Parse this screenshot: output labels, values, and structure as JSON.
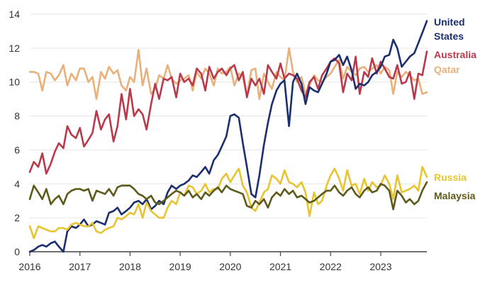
{
  "chart_data": {
    "type": "line",
    "title": "",
    "xlabel": "",
    "ylabel": "",
    "xlim": [
      2016,
      2023.92
    ],
    "ylim": [
      0,
      14
    ],
    "yticks": [
      0,
      2,
      4,
      6,
      8,
      10,
      12,
      14
    ],
    "xticks": [
      "2016",
      "2017",
      "2018",
      "2019",
      "2020",
      "2021",
      "2022",
      "2023"
    ],
    "grid": true,
    "legend": "direct labels at line ends, right side",
    "x": [
      2016.0,
      2016.08,
      2016.17,
      2016.25,
      2016.33,
      2016.42,
      2016.5,
      2016.58,
      2016.67,
      2016.75,
      2016.83,
      2016.92,
      2017.0,
      2017.08,
      2017.17,
      2017.25,
      2017.33,
      2017.42,
      2017.5,
      2017.58,
      2017.67,
      2017.75,
      2017.83,
      2017.92,
      2018.0,
      2018.08,
      2018.17,
      2018.25,
      2018.33,
      2018.42,
      2018.5,
      2018.58,
      2018.67,
      2018.75,
      2018.83,
      2018.92,
      2019.0,
      2019.08,
      2019.17,
      2019.25,
      2019.33,
      2019.42,
      2019.5,
      2019.58,
      2019.67,
      2019.75,
      2019.83,
      2019.92,
      2020.0,
      2020.08,
      2020.17,
      2020.25,
      2020.33,
      2020.42,
      2020.5,
      2020.58,
      2020.67,
      2020.75,
      2020.83,
      2020.92,
      2021.0,
      2021.08,
      2021.17,
      2021.25,
      2021.33,
      2021.42,
      2021.5,
      2021.58,
      2021.67,
      2021.75,
      2021.83,
      2021.92,
      2022.0,
      2022.08,
      2022.17,
      2022.25,
      2022.33,
      2022.42,
      2022.5,
      2022.58,
      2022.67,
      2022.75,
      2022.83,
      2022.92,
      2023.0,
      2023.08,
      2023.17,
      2023.25,
      2023.33,
      2023.42,
      2023.5,
      2023.58,
      2023.67,
      2023.75,
      2023.83,
      2023.92
    ],
    "series": [
      {
        "name": "Qatar",
        "color": "#E8B07A",
        "values": [
          10.6,
          10.6,
          10.5,
          9.5,
          10.6,
          10.5,
          10.1,
          10.4,
          11.0,
          9.8,
          10.5,
          10.1,
          10.8,
          10.8,
          10.0,
          10.3,
          9.0,
          10.6,
          10.2,
          10.9,
          10.5,
          10.7,
          9.8,
          9.5,
          10.3,
          10.0,
          11.9,
          9.8,
          10.8,
          9.3,
          9.6,
          10.4,
          10.2,
          11.0,
          10.2,
          9.9,
          10.1,
          10.2,
          10.4,
          9.5,
          10.6,
          10.2,
          10.8,
          10.5,
          9.8,
          10.8,
          10.5,
          10.6,
          10.9,
          9.8,
          10.5,
          10.3,
          9.2,
          10.7,
          10.8,
          9.0,
          10.5,
          10.0,
          9.6,
          10.6,
          10.3,
          10.1,
          12.0,
          10.6,
          10.0,
          10.3,
          9.3,
          9.8,
          10.4,
          10.1,
          10.0,
          10.3,
          10.5,
          10.9,
          11.3,
          10.2,
          10.9,
          10.6,
          10.4,
          10.8,
          10.9,
          10.6,
          10.8,
          11.0,
          10.5,
          10.9,
          10.7,
          9.3,
          10.6,
          10.3,
          10.6,
          10.4,
          10.1,
          10.2,
          9.3,
          9.4
        ]
      },
      {
        "name": "Australia",
        "color": "#B83A4B",
        "values": [
          4.7,
          5.3,
          5.0,
          5.8,
          4.6,
          5.2,
          5.9,
          6.4,
          6.1,
          7.4,
          6.9,
          6.7,
          7.3,
          6.2,
          6.6,
          7.0,
          8.3,
          7.2,
          7.8,
          8.1,
          6.5,
          7.4,
          9.3,
          7.8,
          9.6,
          8.0,
          8.4,
          8.1,
          7.2,
          8.7,
          9.9,
          9.0,
          10.2,
          10.1,
          10.3,
          9.1,
          10.5,
          10.0,
          10.2,
          9.8,
          10.8,
          10.5,
          9.5,
          10.9,
          10.2,
          10.6,
          10.8,
          10.4,
          10.8,
          11.0,
          10.1,
          10.6,
          9.1,
          10.2,
          9.8,
          10.2,
          9.3,
          11.0,
          10.6,
          10.2,
          11.1,
          10.2,
          10.5,
          10.4,
          10.2,
          9.5,
          9.1,
          10.0,
          10.3,
          9.6,
          10.4,
          10.8,
          11.2,
          11.4,
          11.1,
          9.4,
          10.5,
          10.1,
          11.5,
          9.3,
          10.6,
          10.3,
          11.4,
          10.5,
          11.2,
          10.8,
          10.3,
          10.2,
          11.0,
          9.9,
          10.0,
          10.6,
          9.0,
          10.5,
          10.4,
          11.8
        ]
      },
      {
        "name": "United States",
        "color": "#1B2E6E",
        "values": [
          0.0,
          0.1,
          0.3,
          0.4,
          0.3,
          0.5,
          0.6,
          0.3,
          0.0,
          1.2,
          1.5,
          1.4,
          1.6,
          1.9,
          1.5,
          1.6,
          1.8,
          1.7,
          1.6,
          2.3,
          2.4,
          2.6,
          2.2,
          2.4,
          2.6,
          2.9,
          3.0,
          2.8,
          3.1,
          2.5,
          2.7,
          3.0,
          2.8,
          3.5,
          3.9,
          3.7,
          3.9,
          4.0,
          4.2,
          4.5,
          4.4,
          4.7,
          5.0,
          4.6,
          5.4,
          5.7,
          6.2,
          6.8,
          8.0,
          8.1,
          7.9,
          6.4,
          5.0,
          3.4,
          3.2,
          4.5,
          6.3,
          7.6,
          8.7,
          9.5,
          9.9,
          10.1,
          7.4,
          10.0,
          10.5,
          9.9,
          8.7,
          9.7,
          9.5,
          9.4,
          9.9,
          10.5,
          11.2,
          11.3,
          11.6,
          11.0,
          11.5,
          10.7,
          9.6,
          9.9,
          9.8,
          10.0,
          10.4,
          10.6,
          10.9,
          11.5,
          11.6,
          12.5,
          12.0,
          10.9,
          11.2,
          11.5,
          11.7,
          12.3,
          12.9,
          13.6
        ]
      },
      {
        "name": "Russia",
        "color": "#E8C430",
        "values": [
          1.5,
          0.8,
          1.5,
          1.4,
          1.3,
          1.2,
          1.2,
          1.4,
          1.4,
          1.3,
          1.6,
          1.7,
          1.6,
          1.5,
          1.5,
          1.7,
          1.2,
          1.1,
          1.3,
          1.4,
          1.5,
          2.0,
          1.9,
          2.1,
          2.3,
          2.2,
          2.8,
          2.0,
          2.9,
          2.4,
          2.2,
          2.0,
          2.0,
          2.6,
          3.0,
          2.8,
          3.5,
          3.3,
          3.9,
          3.8,
          3.4,
          3.6,
          4.0,
          3.5,
          3.7,
          3.7,
          4.3,
          4.6,
          4.1,
          4.5,
          4.9,
          3.9,
          3.5,
          2.6,
          2.4,
          2.9,
          3.5,
          3.7,
          4.5,
          4.3,
          4.0,
          4.8,
          4.1,
          4.0,
          3.8,
          4.1,
          3.5,
          2.1,
          3.5,
          2.8,
          3.0,
          3.9,
          4.5,
          4.9,
          4.3,
          3.6,
          4.8,
          3.9,
          4.0,
          3.4,
          4.3,
          3.6,
          4.1,
          3.8,
          3.9,
          4.5,
          4.0,
          3.1,
          4.5,
          3.5,
          3.6,
          3.7,
          3.9,
          3.6,
          5.0,
          4.4
        ]
      },
      {
        "name": "Malaysia",
        "color": "#5E5A1A",
        "values": [
          3.1,
          3.9,
          3.5,
          3.1,
          3.7,
          2.8,
          3.1,
          3.3,
          2.8,
          3.4,
          3.6,
          3.7,
          3.7,
          3.6,
          3.7,
          3.0,
          3.6,
          3.5,
          3.4,
          3.7,
          3.3,
          3.8,
          3.9,
          3.9,
          3.9,
          3.7,
          3.4,
          3.3,
          3.1,
          3.3,
          2.9,
          2.8,
          3.0,
          3.2,
          3.4,
          3.6,
          3.5,
          3.3,
          3.6,
          3.2,
          3.4,
          3.1,
          3.5,
          3.3,
          3.6,
          3.8,
          3.5,
          3.9,
          3.7,
          3.6,
          3.5,
          3.4,
          2.7,
          2.6,
          3.0,
          2.8,
          3.1,
          2.6,
          3.2,
          3.5,
          3.3,
          3.7,
          3.4,
          3.6,
          3.2,
          3.3,
          3.1,
          2.9,
          3.0,
          3.2,
          3.4,
          3.6,
          3.6,
          3.9,
          3.5,
          3.3,
          3.6,
          3.8,
          3.4,
          3.2,
          3.6,
          3.8,
          3.5,
          3.6,
          4.0,
          3.9,
          3.6,
          2.5,
          3.6,
          3.3,
          2.9,
          3.1,
          2.8,
          3.0,
          3.6,
          4.1
        ]
      }
    ]
  }
}
